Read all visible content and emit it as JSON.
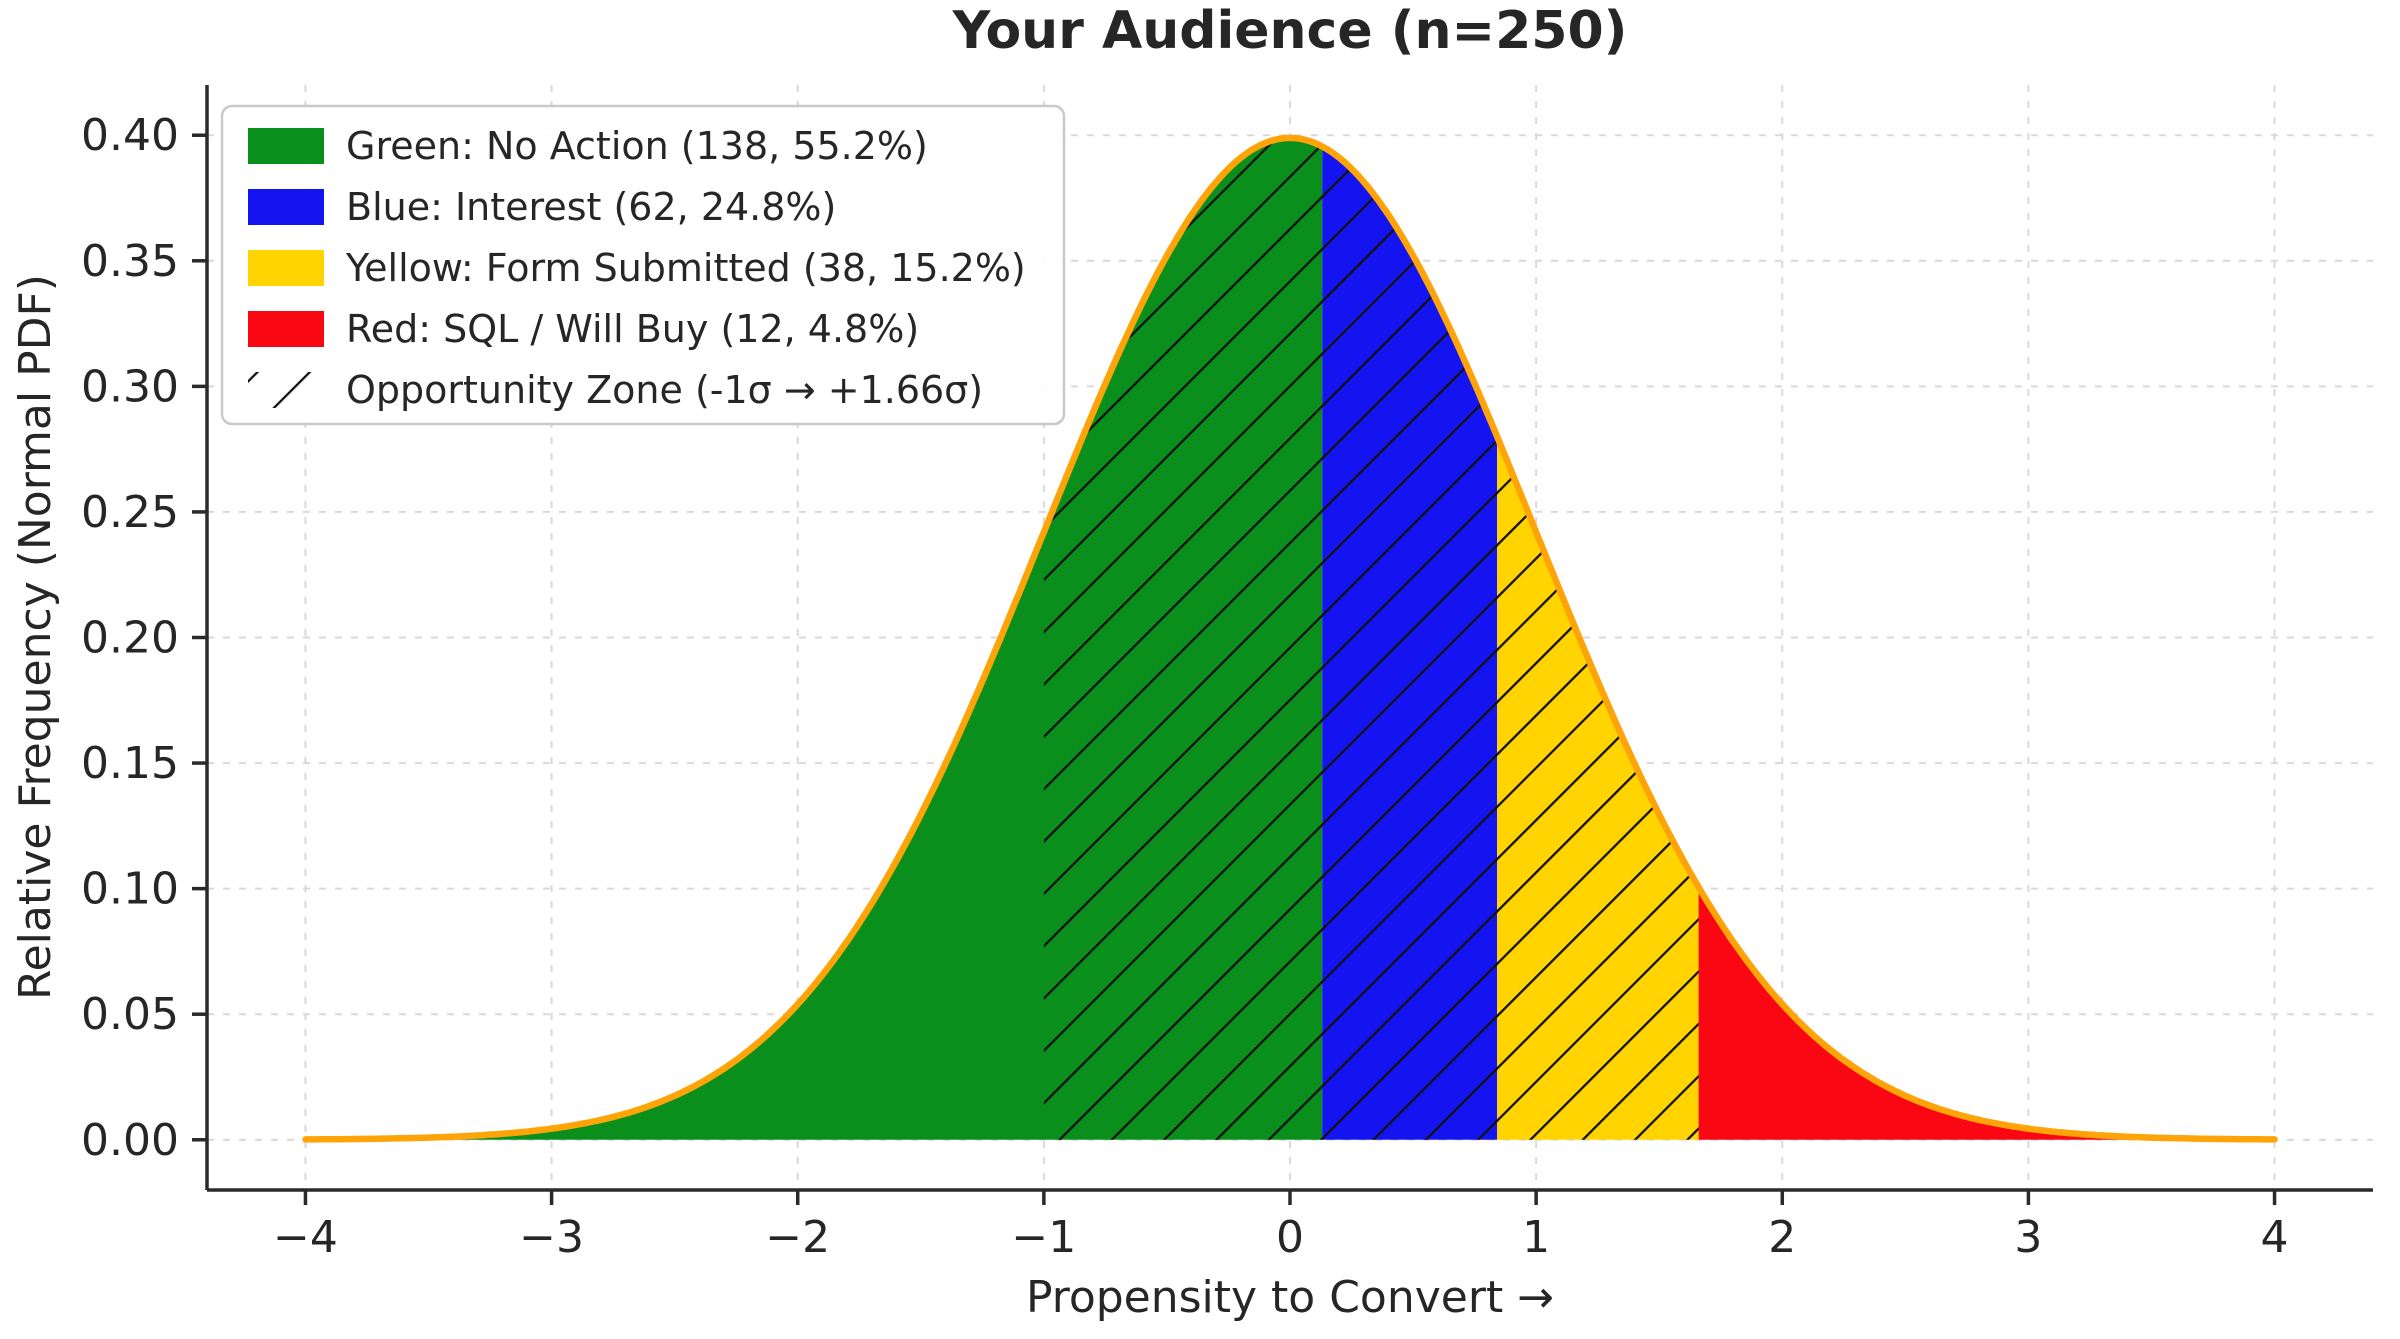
{
  "chart_data": {
    "type": "area",
    "title": "Your Audience (n=250)",
    "xlabel": "Propensity to Convert →",
    "ylabel": "Relative Frequency (Normal PDF)",
    "n": 250,
    "distribution": {
      "kind": "normal-pdf",
      "mu": 0,
      "sigma": 1,
      "peak": 0.3989
    },
    "x_range": [
      -4,
      4
    ],
    "xlim": [
      -4.4,
      4.4
    ],
    "ylim": [
      -0.02,
      0.42
    ],
    "x_ticks": [
      -4,
      -3,
      -2,
      -1,
      0,
      1,
      2,
      3,
      4
    ],
    "y_ticks": [
      0.0,
      0.05,
      0.1,
      0.15,
      0.2,
      0.25,
      0.3,
      0.35,
      0.4
    ],
    "grid": true,
    "legend_position": "upper left",
    "segments": [
      {
        "name": "green",
        "label": "Green: No Action (138, 55.2%)",
        "color": "#0a8f1c",
        "from": -4.0,
        "to": 0.1307,
        "count": 138,
        "pct": 55.2
      },
      {
        "name": "blue",
        "label": "Blue: Interest (62, 24.8%)",
        "color": "#1414f0",
        "from": 0.1307,
        "to": 0.8416,
        "count": 62,
        "pct": 24.8
      },
      {
        "name": "yellow",
        "label": "Yellow: Form Submitted (38, 15.2%)",
        "color": "#ffd400",
        "from": 0.8416,
        "to": 1.66,
        "count": 38,
        "pct": 15.2
      },
      {
        "name": "red",
        "label": "Red: SQL / Will Buy (12, 4.8%)",
        "color": "#f90713",
        "from": 1.66,
        "to": 4.0,
        "count": 12,
        "pct": 4.8
      }
    ],
    "opportunity_zone": {
      "label": "Opportunity Zone (-1σ → +1.66σ)",
      "from": -1.0,
      "to": 1.66,
      "hatch": "/"
    },
    "colors": {
      "curve": "#ffa408",
      "hatch": "#111111",
      "grid": "#d9d9d9",
      "spine": "#2a2a2a",
      "text": "#262626",
      "legend_border": "#c9c9c9",
      "legend_bg": "#ffffff",
      "background": "#ffffff"
    }
  }
}
